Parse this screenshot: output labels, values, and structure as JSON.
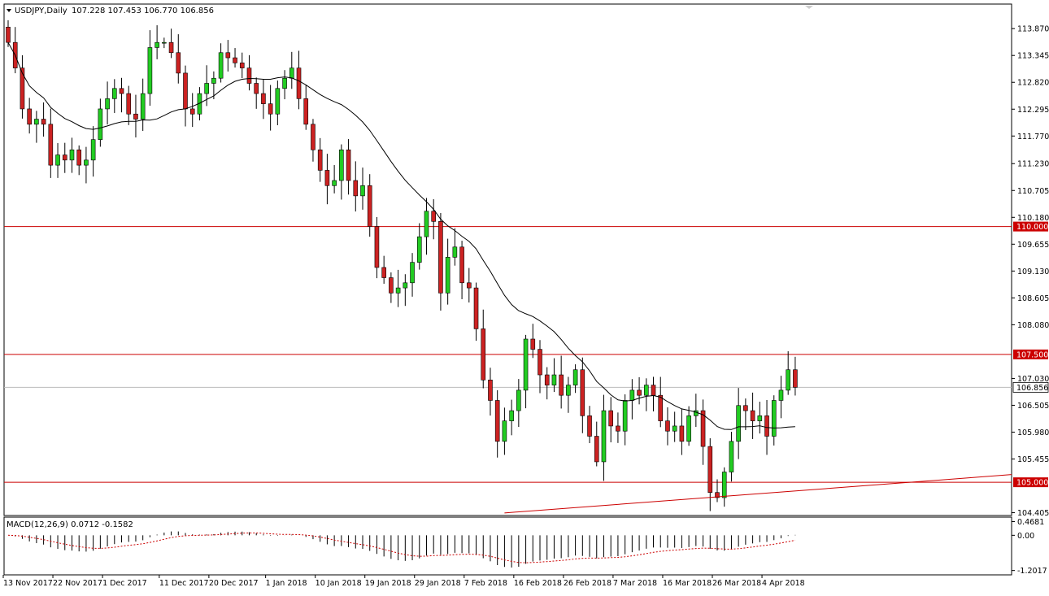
{
  "header": {
    "symbol_label": "USDJPY,Daily",
    "ohlc_label": "107.228 107.453 106.770 106.856"
  },
  "indicator": {
    "label": "MACD(12,26,9) 0.0712 -0.1582"
  },
  "colors": {
    "bull": "#22cc22",
    "bear": "#cc2222",
    "level_line": "#cc0000",
    "ma_line": "#000000",
    "current_price_line": "#bbbbbb",
    "grid": "#000000"
  },
  "chart_data": [
    {
      "type": "candlestick",
      "title": "USDJPY,Daily",
      "price_axis_ticks": [
        "113.870",
        "113.345",
        "112.820",
        "112.295",
        "111.770",
        "111.230",
        "110.705",
        "110.180",
        "109.655",
        "109.130",
        "108.605",
        "108.080",
        "107.030",
        "106.505",
        "105.980",
        "105.455",
        "104.405"
      ],
      "price_tick_values": [
        113.87,
        113.345,
        112.82,
        112.295,
        111.77,
        111.23,
        110.705,
        110.18,
        109.655,
        109.13,
        108.605,
        108.08,
        107.03,
        106.505,
        105.98,
        105.455,
        104.405
      ],
      "ylim": [
        104.35,
        114.35
      ],
      "levels": [
        {
          "label": "110.000",
          "value": 110.0
        },
        {
          "label": "107.500",
          "value": 107.5
        },
        {
          "label": "105.000",
          "value": 105.0
        }
      ],
      "current_price": {
        "label": "106.856",
        "value": 106.856
      },
      "date_axis_ticks": [
        {
          "label": "13 Nov 2017",
          "index": 0
        },
        {
          "label": "22 Nov 2017",
          "index": 7
        },
        {
          "label": "1 Dec 2017",
          "index": 14
        },
        {
          "label": "11 Dec 2017",
          "index": 22
        },
        {
          "label": "20 Dec 2017",
          "index": 29
        },
        {
          "label": "1 Jan 2018",
          "index": 37
        },
        {
          "label": "10 Jan 2018",
          "index": 44
        },
        {
          "label": "19 Jan 2018",
          "index": 51
        },
        {
          "label": "29 Jan 2018",
          "index": 58
        },
        {
          "label": "7 Feb 2018",
          "index": 65
        },
        {
          "label": "16 Feb 2018",
          "index": 72
        },
        {
          "label": "26 Feb 2018",
          "index": 79
        },
        {
          "label": "7 Mar 2018",
          "index": 86
        },
        {
          "label": "16 Mar 2018",
          "index": 93
        },
        {
          "label": "26 Mar 2018",
          "index": 100
        },
        {
          "label": "4 Apr 2018",
          "index": 107
        }
      ],
      "close_values": [
        113.6,
        113.1,
        112.3,
        112.0,
        112.1,
        112.0,
        111.2,
        111.4,
        111.3,
        111.5,
        111.2,
        111.3,
        111.7,
        112.3,
        112.5,
        112.7,
        112.6,
        112.2,
        112.1,
        112.6,
        113.5,
        113.6,
        113.6,
        113.4,
        113.0,
        112.3,
        112.2,
        112.6,
        112.8,
        112.9,
        113.4,
        113.3,
        113.2,
        113.1,
        112.8,
        112.6,
        112.4,
        112.2,
        112.7,
        112.9,
        113.1,
        112.5,
        112.0,
        111.5,
        111.1,
        110.8,
        110.9,
        111.5,
        110.9,
        110.6,
        110.8,
        110.0,
        109.2,
        109.0,
        108.7,
        108.8,
        108.9,
        109.3,
        109.8,
        110.3,
        110.1,
        108.7,
        109.4,
        109.6,
        108.9,
        108.8,
        108.0,
        107.0,
        106.6,
        105.8,
        106.2,
        106.4,
        106.8,
        107.8,
        107.6,
        107.1,
        106.9,
        107.1,
        106.7,
        106.9,
        107.2,
        106.3,
        105.9,
        105.4,
        106.4,
        106.1,
        106.0,
        106.6,
        106.8,
        106.7,
        106.9,
        106.7,
        106.2,
        106.0,
        106.1,
        105.8,
        106.3,
        106.4,
        105.7,
        104.8,
        104.7,
        105.2,
        105.8,
        106.5,
        106.4,
        106.2,
        106.3,
        105.9,
        106.6,
        106.8,
        107.2,
        106.856
      ]
    },
    {
      "type": "bar",
      "title": "MACD(12,26,9)",
      "macd_value": 0.0712,
      "signal_value": -0.1582,
      "axis_ticks": [
        "0.4681",
        "0.00",
        "-1.2017"
      ],
      "axis_tick_values": [
        0.4681,
        0.0,
        -1.2017
      ],
      "ylim": [
        -1.35,
        0.62
      ]
    }
  ]
}
